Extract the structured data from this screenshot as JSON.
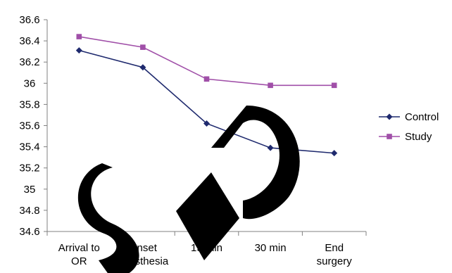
{
  "chart_data": {
    "type": "line",
    "categories": [
      [
        "Arrival to",
        "OR"
      ],
      [
        "Onset",
        "anesthesia"
      ],
      [
        "15 min"
      ],
      [
        "30 min"
      ],
      [
        "End",
        "surgery"
      ]
    ],
    "series": [
      {
        "name": "Control",
        "values": [
          36.31,
          36.15,
          35.62,
          35.39,
          35.34
        ],
        "color": "#1f2a6e",
        "marker": "diamond"
      },
      {
        "name": "Study",
        "values": [
          36.44,
          36.34,
          36.04,
          35.98,
          35.98
        ],
        "color": "#a04fa8",
        "marker": "square"
      }
    ],
    "ylim": [
      34.6,
      36.6
    ],
    "ystep": 0.2,
    "yticks": [
      "34.6",
      "34.8",
      "35",
      "35.2",
      "35.4",
      "35.6",
      "35.8",
      "36",
      "36.2",
      "36.4",
      "36.6"
    ],
    "grid": false,
    "legend": "right",
    "watermark": "SID"
  }
}
